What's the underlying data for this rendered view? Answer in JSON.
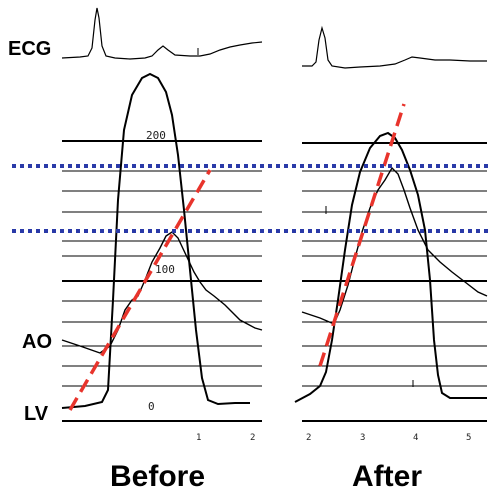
{
  "labels": {
    "ecg": "ECG",
    "ao": "AO",
    "lv": "LV",
    "before": "Before",
    "after": "After"
  },
  "scale_labels": {
    "p200": "200",
    "p100": "100",
    "p0": "0"
  },
  "time_ticks": {
    "before": [
      "1",
      "2"
    ],
    "after": [
      "2",
      "3",
      "4",
      "5"
    ]
  },
  "colors": {
    "trace": "#000000",
    "dashed_line": "#e8342c",
    "dotted_line": "#2a3aa8",
    "grid": "#000000"
  }
}
